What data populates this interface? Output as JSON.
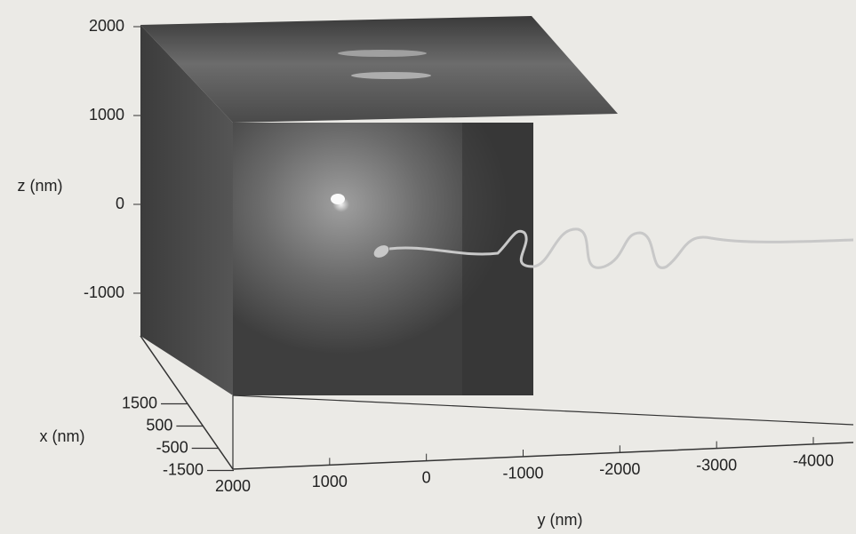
{
  "chart_data": {
    "type": "projection3d",
    "zlabel": "z (nm)",
    "xlabel": "x (nm)",
    "ylabel": "y (nm)",
    "zlim": [
      -1000,
      2000
    ],
    "zticks": [
      2000,
      1000,
      0,
      -1000
    ],
    "xlim": [
      2000,
      -2000
    ],
    "xticks": [
      1500,
      500,
      -500,
      -1500
    ],
    "ylim": [
      2000,
      -4000
    ],
    "yticks": [
      2000,
      1000,
      0,
      -1000,
      -2000,
      -3000,
      -4000
    ]
  }
}
